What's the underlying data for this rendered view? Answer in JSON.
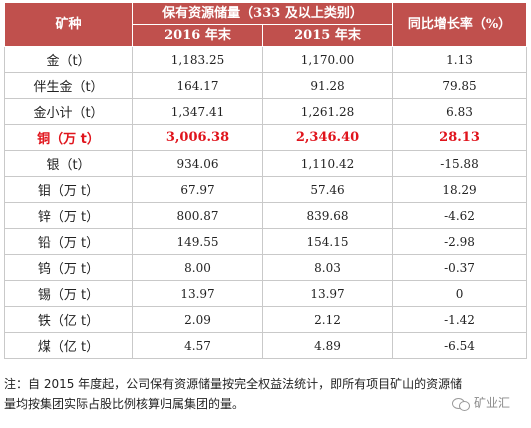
{
  "header": {
    "col_mineral": "矿种",
    "col_reserves_group": "保有资源储量（333 及以上类别）",
    "col_2016": "2016 年末",
    "col_2015": "2015 年末",
    "col_growth": "同比增长率（%）"
  },
  "rows": [
    {
      "name": "金（t）",
      "y2016": "1,183.25",
      "y2015": "1,170.00",
      "growth": "1.13"
    },
    {
      "name": "伴生金（t）",
      "y2016": "164.17",
      "y2015": "91.28",
      "growth": "79.85"
    },
    {
      "name": "金小计（t）",
      "y2016": "1,347.41",
      "y2015": "1,261.28",
      "growth": "6.83"
    },
    {
      "name": "铜（万 t）",
      "y2016": "3,006.38",
      "y2015": "2,346.40",
      "growth": "28.13"
    },
    {
      "name": "银（t）",
      "y2016": "934.06",
      "y2015": "1,110.42",
      "growth": "-15.88"
    },
    {
      "name": "钼（万 t）",
      "y2016": "67.97",
      "y2015": "57.46",
      "growth": "18.29"
    },
    {
      "name": "锌（万 t）",
      "y2016": "800.87",
      "y2015": "839.68",
      "growth": "-4.62"
    },
    {
      "name": "铅（万 t）",
      "y2016": "149.55",
      "y2015": "154.15",
      "growth": "-2.98"
    },
    {
      "name": "钨（万 t）",
      "y2016": "8.00",
      "y2015": "8.03",
      "growth": "-0.37"
    },
    {
      "name": "锡（万 t）",
      "y2016": "13.97",
      "y2015": "13.97",
      "growth": "0"
    },
    {
      "name": "铁（亿 t）",
      "y2016": "2.09",
      "y2015": "2.12",
      "growth": "-1.42"
    },
    {
      "name": "煤（亿 t）",
      "y2016": "4.57",
      "y2015": "4.89",
      "growth": "-6.54"
    }
  ],
  "note": "注：自 2015 年度起，公司保有资源储量按完全权益法统计，即所有项目矿山的资源储量均按集团实际占股比例核算归属集团的量。",
  "watermark": {
    "text": "矿业汇",
    "icon": "wechat-icon"
  },
  "colors": {
    "header_bg": "#c0504d",
    "highlight_text": "#e0141c"
  }
}
